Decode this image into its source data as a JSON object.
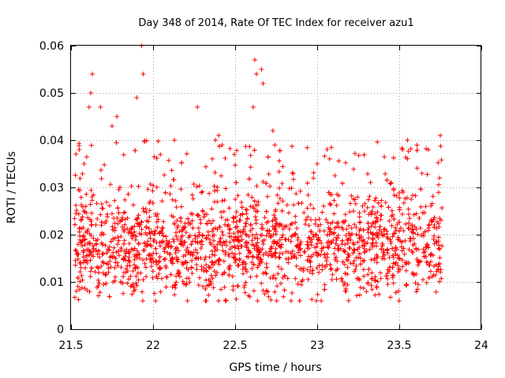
{
  "chart_data": {
    "type": "scatter",
    "title": "Day 348 of 2014, Rate Of TEC Index for receiver azu1",
    "xlabel": "GPS time / hours",
    "ylabel": "ROTI / TECUs",
    "xlim": [
      21.5,
      24
    ],
    "ylim": [
      0,
      0.06
    ],
    "x_ticks": [
      21.5,
      22,
      22.5,
      23,
      23.5,
      24
    ],
    "x_tick_labels": [
      "21.5",
      "22",
      "22.5",
      "23",
      "23.5",
      "24"
    ],
    "y_ticks": [
      0,
      0.01,
      0.02,
      0.03,
      0.04,
      0.05,
      0.06
    ],
    "y_tick_labels": [
      "0",
      "0.01",
      "0.02",
      "0.03",
      "0.04",
      "0.05",
      "0.06"
    ],
    "grid": true,
    "marker": "+",
    "color": "#ff0000",
    "series": [
      {
        "name": "azu1",
        "x_start": 21.52,
        "x_end": 23.76,
        "points_approx": 2000,
        "bulk_range": [
          0.006,
          0.032
        ],
        "typical_center": 0.018,
        "notable_points": [
          {
            "x": 21.63,
            "y": 0.054
          },
          {
            "x": 21.62,
            "y": 0.05
          },
          {
            "x": 21.61,
            "y": 0.047
          },
          {
            "x": 21.58,
            "y": 0.035
          },
          {
            "x": 21.55,
            "y": 0.038
          },
          {
            "x": 21.68,
            "y": 0.047
          },
          {
            "x": 21.78,
            "y": 0.045
          },
          {
            "x": 21.75,
            "y": 0.043
          },
          {
            "x": 21.9,
            "y": 0.049
          },
          {
            "x": 21.93,
            "y": 0.06
          },
          {
            "x": 21.94,
            "y": 0.054
          },
          {
            "x": 22.13,
            "y": 0.04
          },
          {
            "x": 22.27,
            "y": 0.047
          },
          {
            "x": 22.38,
            "y": 0.04
          },
          {
            "x": 22.4,
            "y": 0.041
          },
          {
            "x": 22.42,
            "y": 0.039
          },
          {
            "x": 22.62,
            "y": 0.057
          },
          {
            "x": 22.63,
            "y": 0.054
          },
          {
            "x": 22.66,
            "y": 0.055
          },
          {
            "x": 22.67,
            "y": 0.052
          },
          {
            "x": 22.61,
            "y": 0.047
          },
          {
            "x": 22.73,
            "y": 0.042
          },
          {
            "x": 23.0,
            "y": 0.035
          },
          {
            "x": 23.52,
            "y": 0.038
          },
          {
            "x": 23.55,
            "y": 0.04
          },
          {
            "x": 23.75,
            "y": 0.041
          }
        ]
      }
    ]
  }
}
